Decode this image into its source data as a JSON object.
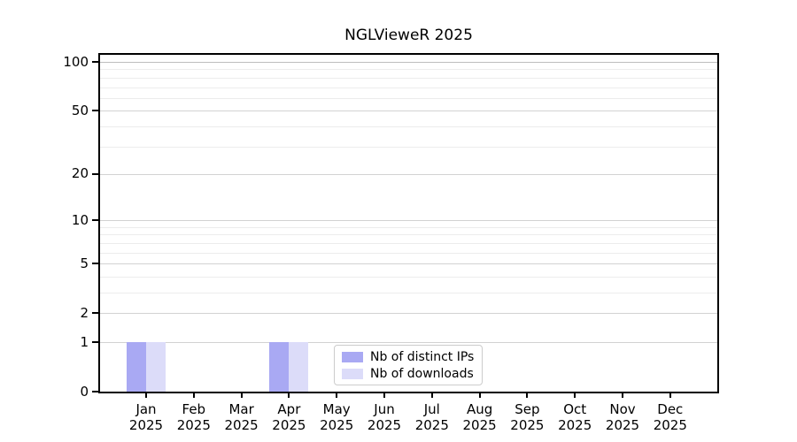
{
  "title": "NGLVieweR 2025",
  "year_label": "2025",
  "colors": {
    "distinct_ips_bar": "#a9a9f3",
    "downloads_bar": "#dcdcf9",
    "major_gridline": "#d2d2d2",
    "minor_gridline": "#ececec",
    "top_gridline": "#bdbdbd",
    "axis": "#000000",
    "background": "#ffffff",
    "legend_border": "#cccccc"
  },
  "chart_data": {
    "type": "bar",
    "title": "NGLVieweR 2025",
    "categories": [
      "Jan",
      "Feb",
      "Mar",
      "Apr",
      "May",
      "Jun",
      "Jul",
      "Aug",
      "Sep",
      "Oct",
      "Nov",
      "Dec"
    ],
    "category_year": "2025",
    "series": [
      {
        "name": "Nb of distinct IPs",
        "color": "#a9a9f3",
        "values": [
          1,
          0,
          0,
          1,
          0,
          0,
          0,
          0,
          0,
          0,
          0,
          0
        ]
      },
      {
        "name": "Nb of downloads",
        "color": "#dcdcf9",
        "values": [
          1,
          0,
          0,
          1,
          0,
          0,
          0,
          0,
          0,
          0,
          0,
          0
        ]
      }
    ],
    "xlabel": "",
    "ylabel": "",
    "yscale": "log1p",
    "ylim": [
      0,
      100
    ],
    "y_ticks": [
      0,
      1,
      2,
      5,
      10,
      20,
      50,
      100
    ],
    "y_minor_ticks": [
      3,
      4,
      6,
      7,
      8,
      9,
      30,
      40,
      60,
      70,
      80,
      90
    ],
    "grid": "on",
    "legend_position": "lower center"
  }
}
